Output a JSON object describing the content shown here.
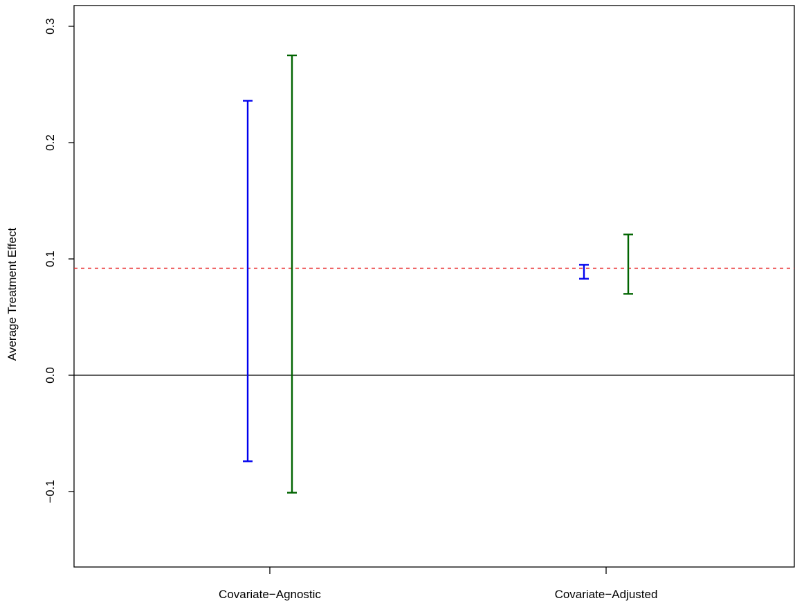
{
  "chart_data": {
    "type": "errorbar",
    "title": "",
    "xlabel": "",
    "ylabel": "Average Treatment Effect",
    "categories": [
      "Covariate−Agnostic",
      "Covariate−Adjusted"
    ],
    "ylim": [
      -0.168,
      0.322
    ],
    "y_ticks": [
      -0.1,
      0.0,
      0.1,
      0.2,
      0.3
    ],
    "y_tick_labels": [
      "−0.1",
      "0.0",
      "0.1",
      "0.2",
      "0.3"
    ],
    "grid": false,
    "legend": "none",
    "reference_lines": [
      {
        "y": 0.0,
        "style": "solid",
        "color": "#000000"
      },
      {
        "y": 0.092,
        "style": "dashed",
        "color": "#e8292a"
      }
    ],
    "series": [
      {
        "color": "#0000ee",
        "intervals": [
          {
            "category": "Covariate−Agnostic",
            "low": -0.074,
            "high": 0.236
          },
          {
            "category": "Covariate−Adjusted",
            "low": 0.083,
            "high": 0.095
          }
        ]
      },
      {
        "color": "#006400",
        "intervals": [
          {
            "category": "Covariate−Agnostic",
            "low": -0.101,
            "high": 0.275
          },
          {
            "category": "Covariate−Adjusted",
            "low": 0.07,
            "high": 0.121
          }
        ]
      }
    ]
  }
}
